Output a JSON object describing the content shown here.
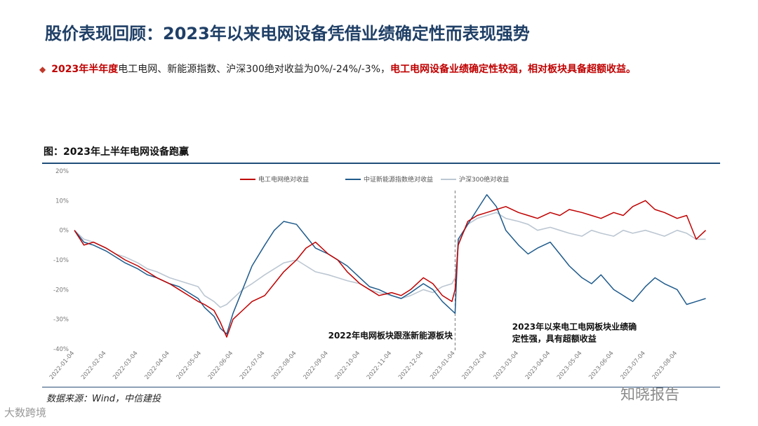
{
  "header": {
    "title": "股价表现回顾：2023年以来电网设备凭借业绩确定性而表现强势"
  },
  "bullet": {
    "part1": "2023年半年度",
    "part2": "电工电网、新能源指数、沪深300绝对收益为0%/-24%/-3%，",
    "part3": "电工电网设备业绩确定性较强，相对板块具备超额收益。"
  },
  "figure": {
    "title": "图：2023年上半年电网设备跑赢"
  },
  "footer": {
    "source": "数据来源：Wind，中信建投",
    "watermark_left": "大数跨境",
    "watermark_right": "知晓报告"
  },
  "colors": {
    "title": "#1f3f66",
    "series_power": "#c00000",
    "series_newenergy": "#1f5b8c",
    "series_hs300": "#bcc7d2"
  },
  "chart_data": {
    "type": "line",
    "title": "图：2023年上半年电网设备跑赢",
    "xlabel": "",
    "ylabel": "",
    "ylim": [
      -40,
      20
    ],
    "yticks": [
      20,
      10,
      0,
      -10,
      -20,
      -30,
      -40
    ],
    "ytick_labels": [
      "20%",
      "10%",
      "0%",
      "-10%",
      "-20%",
      "-30%",
      "-40%"
    ],
    "x_range": [
      0,
      20
    ],
    "x_tick_labels": [
      "2022-01-04",
      "2022-02-04",
      "2022-03-04",
      "2022-04-04",
      "2022-05-04",
      "2022-06-04",
      "2022-07-04",
      "2022-08-04",
      "2022-09-04",
      "2022-10-04",
      "2022-11-04",
      "2022-12-04",
      "2023-01-04",
      "2023-02-04",
      "2023-03-04",
      "2023-04-04",
      "2023-05-04",
      "2023-06-04",
      "2023-07-04",
      "2023-08-04"
    ],
    "legend": "top-center",
    "divider_x": 12,
    "annotations": [
      {
        "text": "2022年电网板块跟涨新能源板块",
        "x": 8.0,
        "y": -36.5
      },
      {
        "text": "2023年以来电工电网板块业绩确",
        "x": 13.8,
        "y": -33.5
      },
      {
        "text": "定性强，具有超额收益",
        "x": 13.8,
        "y": -37.5
      }
    ],
    "series": [
      {
        "name": "电工电网绝对收益",
        "x": [
          0,
          0.3,
          0.6,
          1.0,
          1.3,
          1.6,
          2.0,
          2.3,
          2.6,
          3.0,
          3.3,
          3.6,
          3.9,
          4.1,
          4.4,
          4.6,
          4.8,
          5.0,
          5.3,
          5.6,
          6.0,
          6.3,
          6.6,
          7.0,
          7.3,
          7.6,
          8.0,
          8.3,
          8.6,
          9.0,
          9.3,
          9.6,
          10.0,
          10.3,
          10.6,
          11.0,
          11.3,
          11.6,
          11.9,
          12.0,
          12.1,
          12.4,
          12.7,
          13.0,
          13.3,
          13.6,
          14.0,
          14.3,
          14.6,
          15.0,
          15.3,
          15.6,
          16.0,
          16.3,
          16.6,
          17.0,
          17.3,
          17.6,
          18.0,
          18.3,
          18.6,
          19.0,
          19.3,
          19.6,
          19.9
        ],
        "values": [
          0,
          -5,
          -4,
          -6,
          -8,
          -10,
          -12,
          -14,
          -16,
          -18,
          -20,
          -22,
          -24,
          -25,
          -27,
          -31,
          -36,
          -30,
          -27,
          -24,
          -22,
          -18,
          -14,
          -10,
          -6,
          -4,
          -8,
          -10,
          -14,
          -18,
          -20,
          -22,
          -21,
          -22,
          -20,
          -16,
          -18,
          -22,
          -24,
          -20,
          -5,
          3,
          5,
          6,
          7,
          8,
          6,
          5,
          4,
          6,
          5,
          7,
          6,
          5,
          4,
          6,
          5,
          8,
          10,
          7,
          6,
          4,
          5,
          -3,
          0
        ]
      },
      {
        "name": "中证新能源指数绝对收益",
        "x": [
          0,
          0.3,
          0.6,
          1.0,
          1.3,
          1.6,
          2.0,
          2.3,
          2.6,
          3.0,
          3.3,
          3.6,
          3.9,
          4.1,
          4.4,
          4.6,
          4.8,
          5.0,
          5.3,
          5.6,
          6.0,
          6.3,
          6.6,
          7.0,
          7.3,
          7.6,
          8.0,
          8.3,
          8.6,
          9.0,
          9.3,
          9.6,
          10.0,
          10.3,
          10.6,
          11.0,
          11.3,
          11.6,
          11.9,
          12.0,
          12.1,
          12.4,
          12.7,
          13.0,
          13.3,
          13.6,
          14.0,
          14.3,
          14.6,
          15.0,
          15.3,
          15.6,
          16.0,
          16.3,
          16.6,
          17.0,
          17.3,
          17.6,
          18.0,
          18.3,
          18.6,
          19.0,
          19.3,
          19.6,
          19.9
        ],
        "values": [
          0,
          -4,
          -5,
          -7,
          -9,
          -11,
          -13,
          -15,
          -16,
          -18,
          -19,
          -21,
          -23,
          -26,
          -29,
          -33,
          -35,
          -28,
          -20,
          -12,
          -5,
          0,
          3,
          2,
          -2,
          -6,
          -8,
          -10,
          -12,
          -16,
          -19,
          -20,
          -22,
          -23,
          -21,
          -18,
          -20,
          -24,
          -27,
          -28,
          -3,
          2,
          7,
          12,
          8,
          0,
          -5,
          -8,
          -6,
          -4,
          -8,
          -12,
          -16,
          -18,
          -15,
          -20,
          -22,
          -24,
          -19,
          -16,
          -18,
          -20,
          -25,
          -24,
          -23
        ]
      },
      {
        "name": "沪深300绝对收益",
        "x": [
          0,
          0.3,
          0.6,
          1.0,
          1.3,
          1.6,
          2.0,
          2.3,
          2.6,
          3.0,
          3.3,
          3.6,
          3.9,
          4.1,
          4.4,
          4.6,
          4.8,
          5.0,
          5.3,
          5.6,
          6.0,
          6.3,
          6.6,
          7.0,
          7.3,
          7.6,
          8.0,
          8.3,
          8.6,
          9.0,
          9.3,
          9.6,
          10.0,
          10.3,
          10.6,
          11.0,
          11.3,
          11.6,
          11.9,
          12.0,
          12.1,
          12.4,
          12.7,
          13.0,
          13.3,
          13.6,
          14.0,
          14.3,
          14.6,
          15.0,
          15.3,
          15.6,
          16.0,
          16.3,
          16.6,
          17.0,
          17.3,
          17.6,
          18.0,
          18.3,
          18.6,
          19.0,
          19.3,
          19.6,
          19.9
        ],
        "values": [
          0,
          -3,
          -4,
          -6,
          -8,
          -9,
          -11,
          -13,
          -14,
          -16,
          -17,
          -18,
          -19,
          -22,
          -24,
          -26,
          -25,
          -23,
          -20,
          -18,
          -15,
          -13,
          -11,
          -10,
          -12,
          -14,
          -15,
          -16,
          -17,
          -18,
          -20,
          -21,
          -22,
          -23,
          -22,
          -20,
          -21,
          -19,
          -18,
          -16,
          -4,
          2,
          4,
          5,
          6,
          4,
          3,
          2,
          0,
          1,
          0,
          -1,
          -2,
          0,
          -1,
          -2,
          0,
          -1,
          0,
          -1,
          -2,
          0,
          -1,
          -3,
          -3
        ]
      }
    ]
  }
}
